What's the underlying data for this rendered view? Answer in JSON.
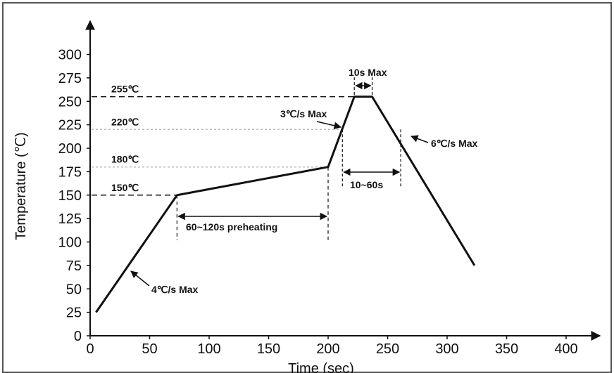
{
  "chart_data": {
    "type": "line",
    "xlabel": "Time (sec)",
    "ylabel": "Temperature (℃)",
    "xlim": [
      0,
      430
    ],
    "ylim": [
      0,
      300
    ],
    "x_ticks": [
      "0",
      "50",
      "100",
      "150",
      "200",
      "250",
      "300",
      "350",
      "400"
    ],
    "y_ticks": [
      "0",
      "25",
      "50",
      "75",
      "100",
      "125",
      "150",
      "175",
      "200",
      "225",
      "250",
      "275",
      "300"
    ],
    "grid": false,
    "series": [
      {
        "points": [
          {
            "x": 5,
            "y": 25
          },
          {
            "x": 73,
            "y": 150
          },
          {
            "x": 200,
            "y": 180
          },
          {
            "x": 222,
            "y": 255
          },
          {
            "x": 237,
            "y": 255
          },
          {
            "x": 323,
            "y": 75
          }
        ]
      }
    ],
    "reference_levels": [
      {
        "label": "255℃",
        "y": 255
      },
      {
        "label": "220℃",
        "y": 220
      },
      {
        "label": "180℃",
        "y": 180
      },
      {
        "label": "150℃",
        "y": 150
      }
    ],
    "annotations": {
      "ramp_up": "4℃/s Max",
      "preheating": "60~120s preheating",
      "ramp_to_peak": "3℃/s Max",
      "peak_time": "10s Max",
      "above_220": "10~60s",
      "cool_down": "6℃/s Max"
    }
  }
}
